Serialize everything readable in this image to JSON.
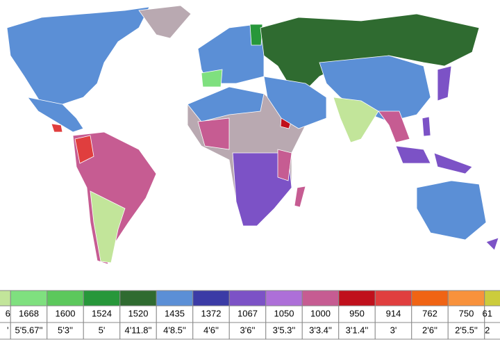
{
  "legend": {
    "columns": [
      {
        "color": "#c2e59a",
        "metric": "6",
        "imperial": "'"
      },
      {
        "color": "#7fe07f",
        "metric": "1668",
        "imperial": "5'5.67''"
      },
      {
        "color": "#5cc85c",
        "metric": "1600",
        "imperial": "5'3''"
      },
      {
        "color": "#27973a",
        "metric": "1524",
        "imperial": "5'"
      },
      {
        "color": "#2f6b30",
        "metric": "1520",
        "imperial": "4'11.8''"
      },
      {
        "color": "#5b8fd6",
        "metric": "1435",
        "imperial": "4'8.5''"
      },
      {
        "color": "#3b3ba6",
        "metric": "1372",
        "imperial": "4'6''"
      },
      {
        "color": "#7c52c6",
        "metric": "1067",
        "imperial": "3'6''"
      },
      {
        "color": "#ad6fd8",
        "metric": "1050",
        "imperial": "3'5.3''"
      },
      {
        "color": "#c65c92",
        "metric": "1000",
        "imperial": "3'3.4''"
      },
      {
        "color": "#c0101c",
        "metric": "950",
        "imperial": "3'1.4''"
      },
      {
        "color": "#e03e3e",
        "metric": "914",
        "imperial": "3'"
      },
      {
        "color": "#f06414",
        "metric": "762",
        "imperial": "2'6''"
      },
      {
        "color": "#f8923c",
        "metric": "750",
        "imperial": "2'5.5''"
      },
      {
        "color": "#cccc3c",
        "metric": "61",
        "imperial": "2"
      }
    ]
  }
}
